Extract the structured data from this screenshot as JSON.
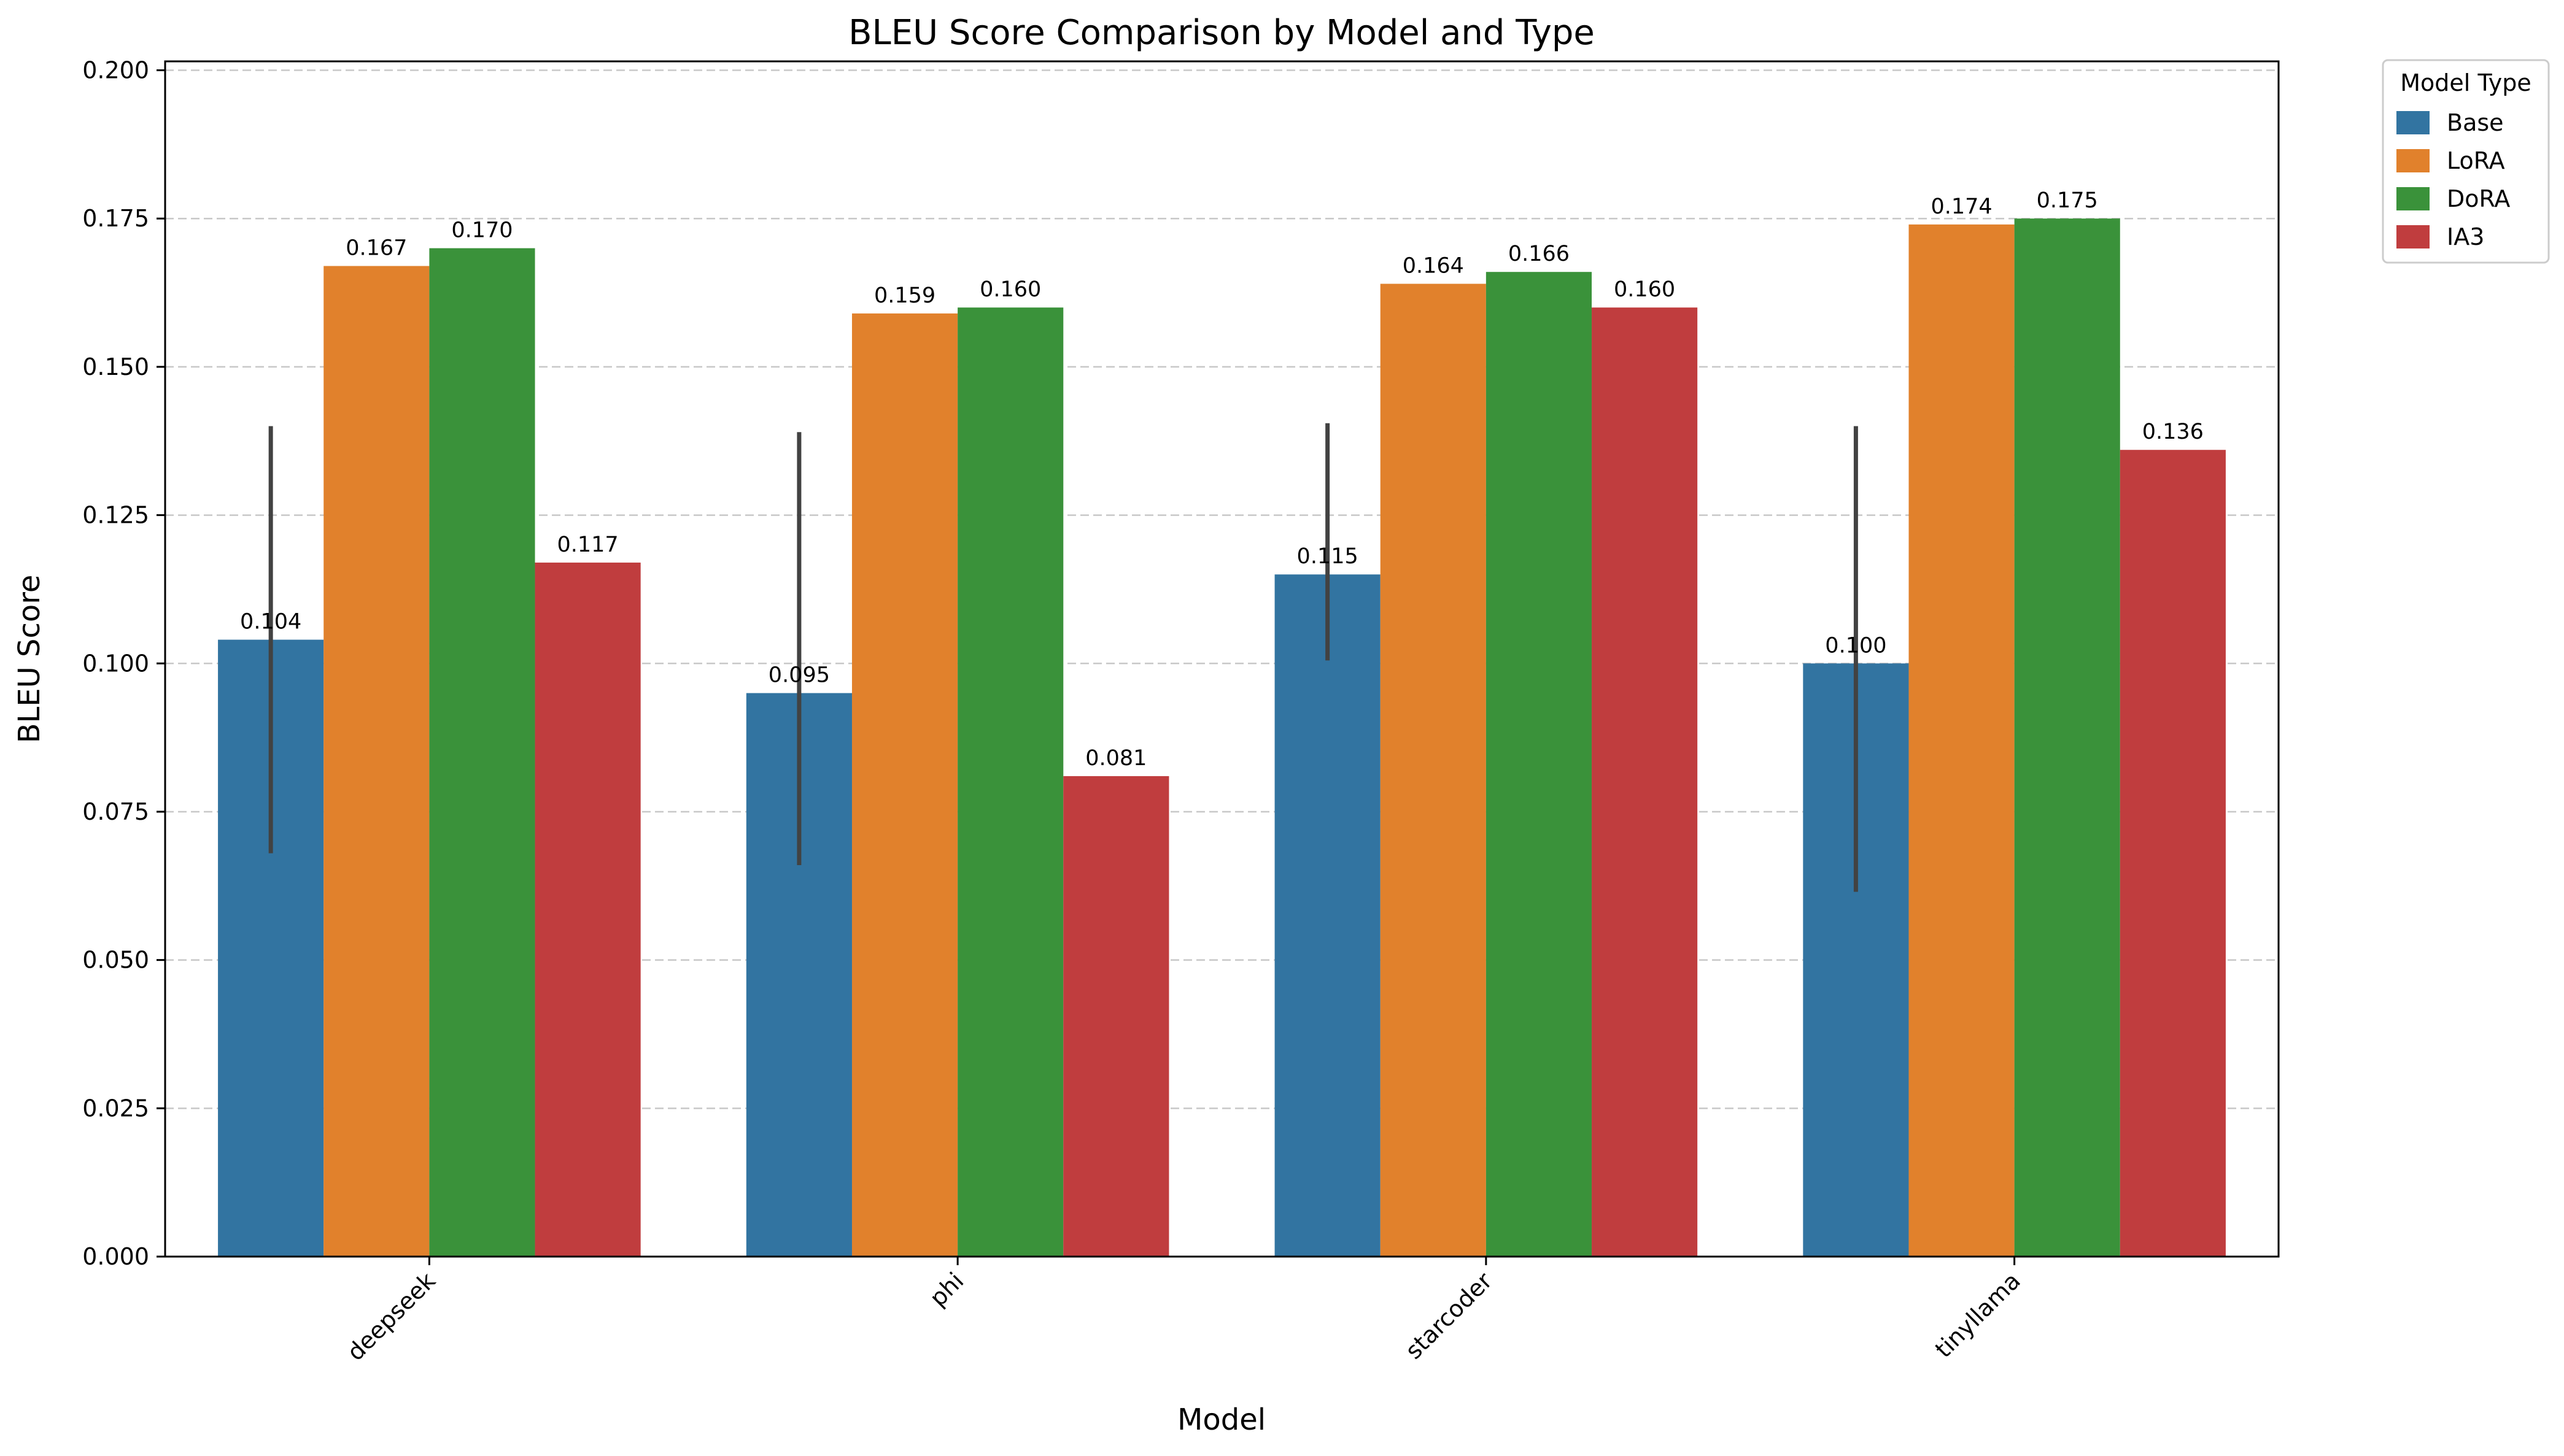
{
  "chart_data": {
    "type": "bar",
    "title": "BLEU Score Comparison by Model and Type",
    "xlabel": "Model",
    "ylabel": "BLEU Score",
    "categories": [
      "deepseek",
      "phi",
      "starcoder",
      "tinyllama"
    ],
    "ylim": [
      0,
      0.2015
    ],
    "yticks": [
      "0.000",
      "0.025",
      "0.050",
      "0.075",
      "0.100",
      "0.125",
      "0.150",
      "0.175",
      "0.200"
    ],
    "grid": "y, dashed",
    "legend": {
      "title": "Model Type",
      "placement": "outside top-right"
    },
    "series": [
      {
        "name": "Base",
        "color": "#3274a1",
        "values": [
          0.104,
          0.095,
          0.115,
          0.1
        ],
        "labels": [
          "0.104",
          "0.095",
          "0.115",
          "0.100"
        ],
        "error_low": [
          0.068,
          0.066,
          0.1005,
          0.0615
        ],
        "error_high": [
          0.14,
          0.139,
          0.1405,
          0.14
        ]
      },
      {
        "name": "LoRA",
        "color": "#e1812c",
        "values": [
          0.167,
          0.159,
          0.164,
          0.174
        ],
        "labels": [
          "0.167",
          "0.159",
          "0.164",
          "0.174"
        ]
      },
      {
        "name": "DoRA",
        "color": "#3a923a",
        "values": [
          0.17,
          0.16,
          0.166,
          0.175
        ],
        "labels": [
          "0.170",
          "0.160",
          "0.166",
          "0.175"
        ]
      },
      {
        "name": "IA3",
        "color": "#c03d3e",
        "values": [
          0.117,
          0.081,
          0.16,
          0.136
        ],
        "labels": [
          "0.117",
          "0.081",
          "0.160",
          "0.136"
        ]
      }
    ]
  }
}
